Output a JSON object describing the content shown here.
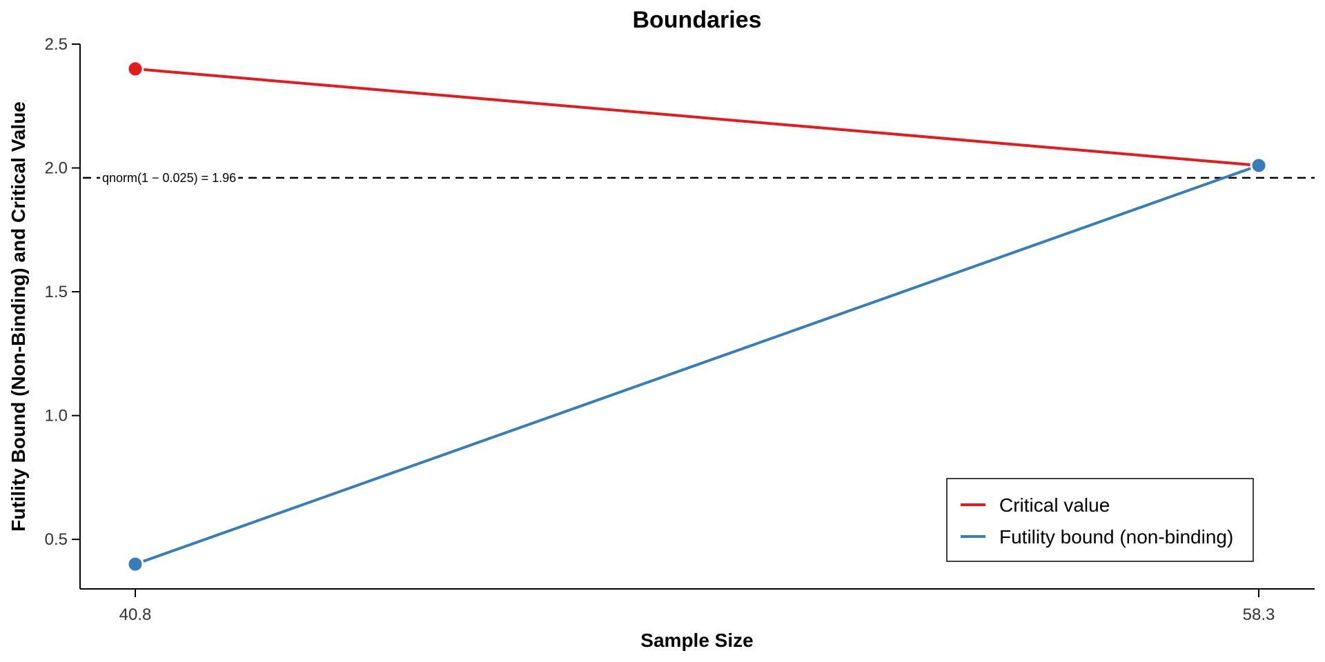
{
  "chart_data": {
    "type": "line",
    "title": "Boundaries",
    "xlabel": "Sample Size",
    "ylabel": "Futility Bound (Non-Binding) and Critical Value",
    "x": [
      40.8,
      58.3
    ],
    "x_tick_labels": [
      "40.8",
      "58.3"
    ],
    "ylim": [
      0.3,
      2.5
    ],
    "y_ticks": [
      0.5,
      1.0,
      1.5,
      2.0,
      2.5
    ],
    "y_tick_labels": [
      "0.5",
      "1.0",
      "1.5",
      "2.0",
      "2.5"
    ],
    "grid": false,
    "legend_position": "bottom-right",
    "series": [
      {
        "name": "Critical value",
        "color": "#e41a1c",
        "values": [
          2.4,
          2.01
        ]
      },
      {
        "name": "Futility bound (non-binding)",
        "color": "#377eb8",
        "values": [
          0.4,
          2.01
        ]
      }
    ],
    "reference_line": {
      "y": 1.96,
      "label": "qnorm(1 − 0.025) = 1.96",
      "style": "dashed",
      "color": "#000000"
    }
  }
}
